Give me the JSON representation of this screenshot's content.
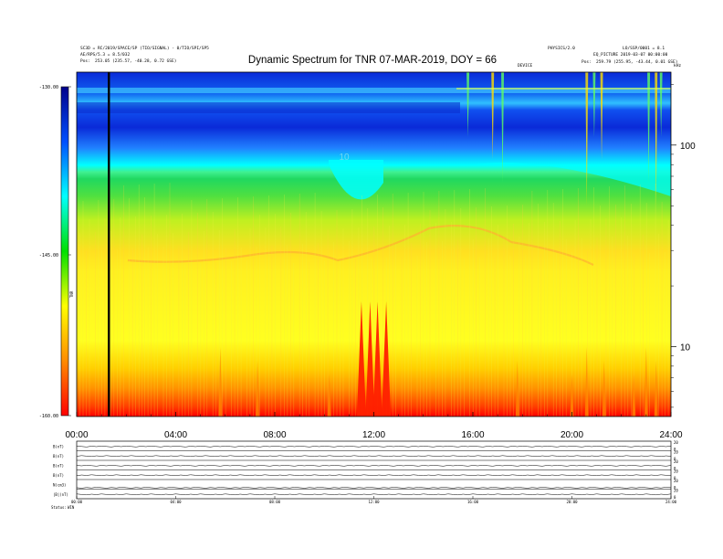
{
  "chart_data": {
    "type": "heatmap",
    "title": "Dynamic Spectrum for TNR 07-MAR-2019, DOY = 66",
    "header_left": [
      "SC3D = RC/2019/SPACE/SP (TIO/SIGNAL) - 0/TIO/SPI/SP5",
      "AE/RPS/5.3 = 8.5/032"
    ],
    "header_right": [
      "PHYSICS/2.0",
      "LO/SSP/0001 = 8.1",
      "EQ_PICTURE 2019-03-07 00:00:00"
    ],
    "header_center": "DEVICE",
    "header_corner": "kHz",
    "pos_left": {
      "label": "Pos:",
      "value": "253.05 (235.57, -40.28, 0.72 GSE)"
    },
    "pos_right": {
      "label": "Pos:",
      "value": "259.79 (255.95, -43.44, 0.01 GSE)"
    },
    "colorbar": {
      "label": "TNR",
      "ticks": [
        "-130.00",
        "-145.00",
        "-160.00"
      ],
      "range": [
        -160,
        -130
      ],
      "stops": [
        "#ff0000",
        "#ff8c00",
        "#ffff00",
        "#00e000",
        "#00ffff",
        "#0050ff",
        "#00008b"
      ]
    },
    "x_axis": {
      "range_hours": [
        0,
        24
      ],
      "ticks": [
        "00:00",
        "04:00",
        "08:00",
        "12:00",
        "16:00",
        "20:00",
        "24:00"
      ]
    },
    "y_axis": {
      "scale": "log",
      "unit": "kHz",
      "range": [
        4.5,
        230
      ],
      "ticks": [
        10,
        100
      ],
      "tick_labels": [
        "10",
        "100"
      ]
    },
    "in_plot_label": "10",
    "marker_line_hour": 1.3,
    "bursts_hours": [
      5.8,
      7.3,
      10.2,
      11.5,
      11.85,
      12.15,
      12.5,
      17.8,
      20.0,
      20.6,
      21.3,
      22.5,
      23.0,
      23.4
    ],
    "bursts_high_hours": [
      15.8,
      16.8,
      17.2,
      20.6,
      20.9,
      21.2,
      23.1,
      23.4,
      23.6
    ],
    "panels": [
      {
        "label": "B(nT)",
        "right_ticks": [
          "20",
          "0"
        ]
      },
      {
        "label": "B(nT)",
        "right_ticks": [
          "20",
          "0"
        ]
      },
      {
        "label": "B(nT)",
        "right_ticks": [
          "20",
          "0"
        ]
      },
      {
        "label": "B(nT)",
        "right_ticks": [
          "20",
          "0"
        ]
      },
      {
        "label": "N(cm3)",
        "right_ticks": [
          "20",
          "0"
        ]
      },
      {
        "label": "|B|(nT)",
        "right_ticks": [
          "20",
          "0"
        ]
      }
    ],
    "bottom_ticks": [
      "00:00",
      "04:00",
      "08:00",
      "12:00",
      "16:00",
      "20:00",
      "24:00"
    ],
    "status_label": "Status:",
    "status_value": "WIN"
  }
}
